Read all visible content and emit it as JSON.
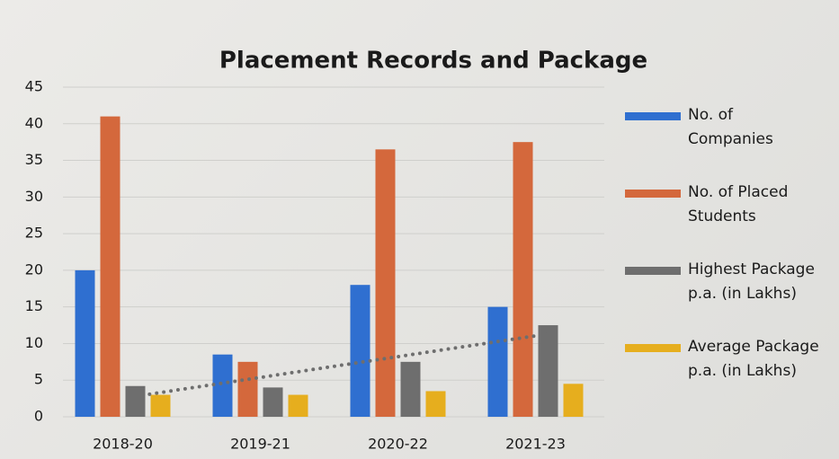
{
  "chart_data": {
    "type": "bar",
    "title": "Placement Records and Package",
    "categories": [
      "2018-20",
      "2019-21",
      "2020-22",
      "2021-23"
    ],
    "series": [
      {
        "name": "No. of Companies",
        "color": "#2f6fd0",
        "values": [
          20,
          8.5,
          18,
          15
        ]
      },
      {
        "name": "No. of Placed Students",
        "color": "#d4683c",
        "values": [
          41,
          7.5,
          36.5,
          37.5
        ]
      },
      {
        "name": "Highest Package p.a. (in Lakhs)",
        "color": "#6e6e6e",
        "values": [
          4.2,
          4,
          7.5,
          12.5
        ]
      },
      {
        "name": "Average Package p.a. (in Lakhs)",
        "color": "#e6ae1e",
        "values": [
          3,
          3,
          3.5,
          4.5
        ]
      }
    ],
    "ylim": [
      0,
      45
    ],
    "yticks": [
      0,
      5,
      10,
      15,
      20,
      25,
      30,
      35,
      40,
      45
    ],
    "grid": true,
    "legend": "right"
  }
}
